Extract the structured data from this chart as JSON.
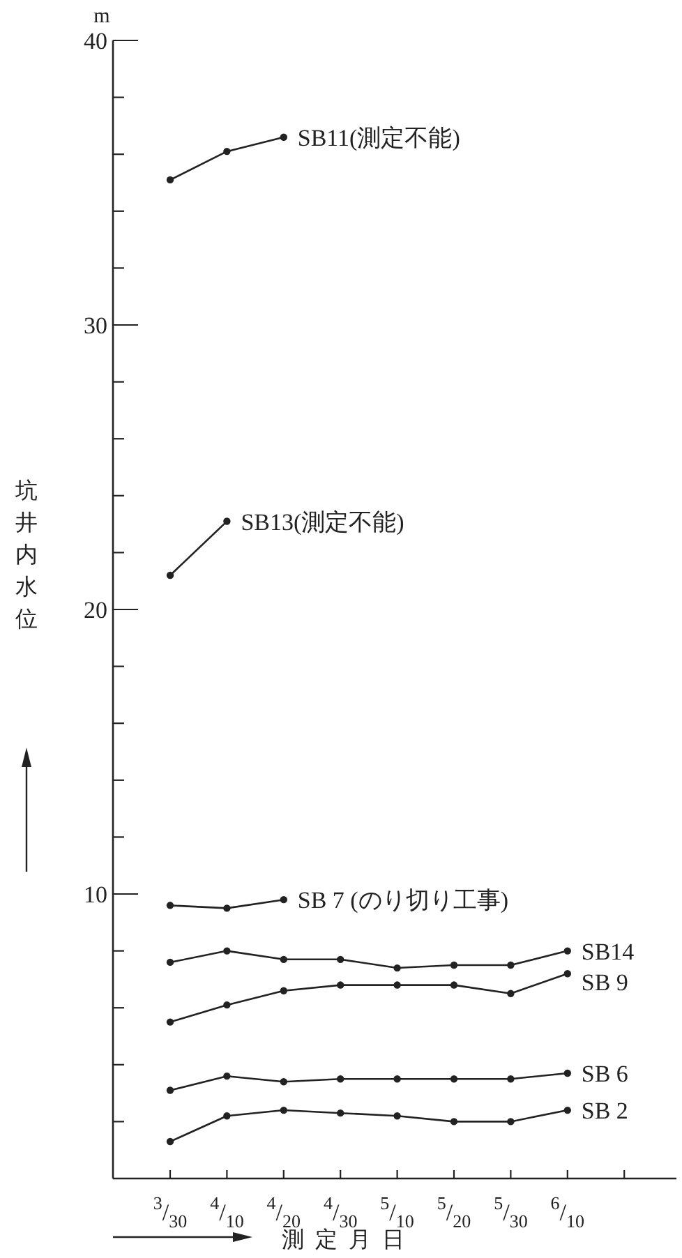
{
  "chart_data": {
    "type": "line",
    "ylabel": "坑井内水位",
    "xlabel": "測定月日",
    "annotations": [
      "m"
    ],
    "categories": [
      "3/30",
      "4/10",
      "4/20",
      "4/30",
      "5/10",
      "5/20",
      "5/30",
      "6/10",
      null
    ],
    "ylim": [
      0,
      40
    ],
    "yticks": [
      {
        "value": 2,
        "label": null
      },
      {
        "value": 4,
        "label": null
      },
      {
        "value": 6,
        "label": null
      },
      {
        "value": 8,
        "label": null
      },
      10,
      {
        "value": 12,
        "label": null
      },
      {
        "value": 14,
        "label": null
      },
      {
        "value": 16,
        "label": null
      },
      {
        "value": 18,
        "label": null
      },
      20,
      {
        "value": 22,
        "label": null
      },
      {
        "value": 24,
        "label": null
      },
      {
        "value": 26,
        "label": null
      },
      {
        "value": 28,
        "label": null
      },
      30,
      {
        "value": 32,
        "label": null
      },
      {
        "value": 34,
        "label": null
      },
      {
        "value": 36,
        "label": null
      },
      {
        "value": 38,
        "label": null
      },
      40
    ],
    "marker": "circle",
    "line_style": "solid",
    "series": [
      {
        "name": "SB11(測定不能)",
        "color": "#222222",
        "values": [
          35.1,
          36.1,
          36.6,
          null,
          null,
          null,
          null,
          null,
          null
        ]
      },
      {
        "name": "SB13(測定不能)",
        "color": "#222222",
        "values": [
          21.2,
          23.1,
          null,
          null,
          null,
          null,
          null,
          null,
          null
        ]
      },
      {
        "name": "SB 7 (のり切り工事)",
        "color": "#222222",
        "values": [
          9.6,
          9.5,
          9.8,
          null,
          null,
          null,
          null,
          null,
          null
        ]
      },
      {
        "name": "SB14",
        "color": "#222222",
        "values": [
          7.6,
          8.0,
          7.7,
          7.7,
          7.4,
          7.5,
          7.5,
          8.0,
          null
        ]
      },
      {
        "name": "SB 9",
        "color": "#222222",
        "values": [
          5.5,
          6.1,
          6.6,
          6.8,
          6.8,
          6.8,
          6.5,
          7.2,
          null
        ]
      },
      {
        "name": "SB 6",
        "color": "#222222",
        "values": [
          3.1,
          3.6,
          3.4,
          3.5,
          3.5,
          3.5,
          3.5,
          3.7,
          null
        ]
      },
      {
        "name": "SB 2",
        "color": "#222222",
        "values": [
          1.3,
          2.2,
          2.4,
          2.3,
          2.2,
          2.0,
          2.0,
          2.4,
          null
        ]
      }
    ]
  }
}
